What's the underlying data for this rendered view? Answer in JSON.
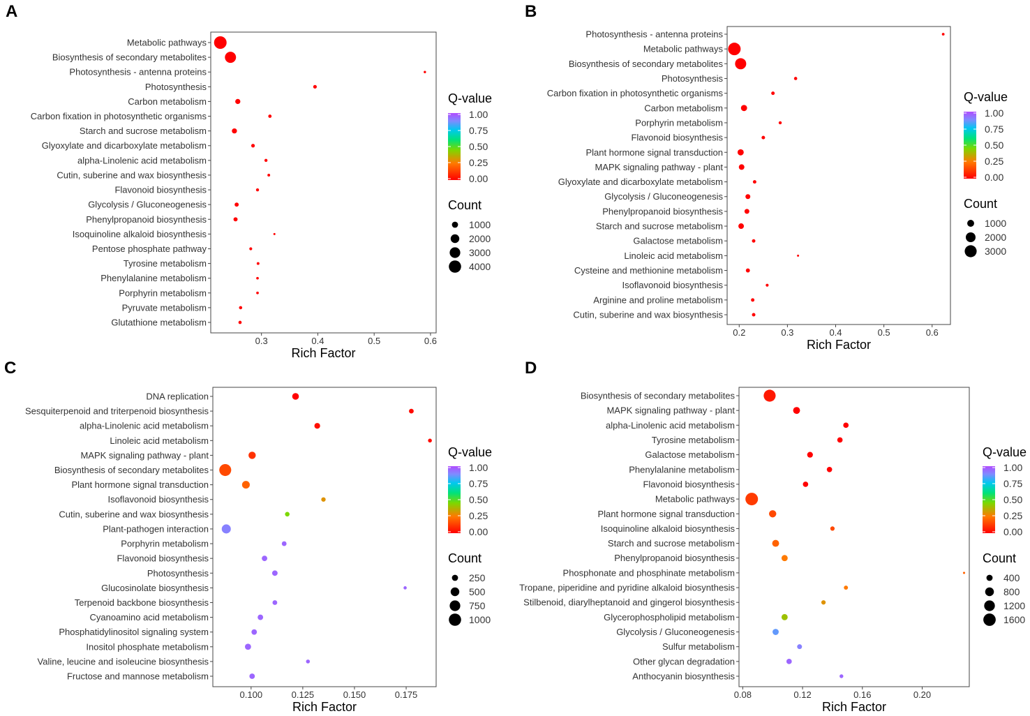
{
  "chart_data": [
    {
      "panel": "A",
      "type": "scatter",
      "xlabel": "Rich Factor",
      "xticks": [
        0.3,
        0.4,
        0.5,
        0.6
      ],
      "xlim": [
        0.21,
        0.61
      ],
      "pathways": [
        "Metabolic pathways",
        "Biosynthesis of secondary metabolites",
        "Photosynthesis - antenna proteins",
        "Photosynthesis",
        "Carbon metabolism",
        "Carbon fixation in photosynthetic organisms",
        "Starch and sucrose metabolism",
        "Glyoxylate and dicarboxylate metabolism",
        "alpha-Linolenic acid metabolism",
        "Cutin, suberine and wax biosynthesis",
        "Flavonoid biosynthesis",
        "Glycolysis / Gluconeogenesis",
        "Phenylpropanoid biosynthesis",
        "Isoquinoline alkaloid biosynthesis",
        "Pentose phosphate pathway",
        "Tyrosine metabolism",
        "Phenylalanine metabolism",
        "Porphyrin metabolism",
        "Pyruvate metabolism",
        "Glutathione metabolism"
      ],
      "rich_factor": [
        0.227,
        0.245,
        0.59,
        0.395,
        0.258,
        0.315,
        0.252,
        0.285,
        0.308,
        0.313,
        0.293,
        0.256,
        0.254,
        0.323,
        0.281,
        0.294,
        0.293,
        0.293,
        0.263,
        0.262
      ],
      "count": [
        4200,
        3300,
        150,
        350,
        700,
        300,
        700,
        350,
        250,
        200,
        250,
        450,
        450,
        80,
        230,
        200,
        180,
        180,
        280,
        280
      ],
      "q_value": [
        0.0,
        0.0,
        0.0,
        0.0,
        0.0,
        0.0,
        0.0,
        0.0,
        0.0,
        0.0,
        0.0,
        0.0,
        0.0,
        0.0,
        0.0,
        0.0,
        0.0,
        0.0,
        0.0,
        0.0
      ],
      "color_legend": {
        "title": "Q-value",
        "ticks": [
          "1.00",
          "0.75",
          "0.50",
          "0.25",
          "0.00"
        ]
      },
      "size_legend": {
        "title": "Count",
        "values": [
          1000,
          2000,
          3000,
          4000
        ],
        "labels": [
          "1000",
          "2000",
          "3000",
          "4000"
        ]
      },
      "count_max": 4200
    },
    {
      "panel": "B",
      "type": "scatter",
      "xlabel": "Rich Factor",
      "xticks": [
        0.2,
        0.3,
        0.4,
        0.5,
        0.6
      ],
      "xlim": [
        0.175,
        0.638
      ],
      "pathways": [
        "Photosynthesis - antenna proteins",
        "Metabolic pathways",
        "Biosynthesis of secondary metabolites",
        "Photosynthesis",
        "Carbon fixation in photosynthetic organisms",
        "Carbon metabolism",
        "Porphyrin metabolism",
        "Flavonoid biosynthesis",
        "Plant hormone signal transduction",
        "MAPK signaling pathway - plant",
        "Glyoxylate and dicarboxylate metabolism",
        "Glycolysis / Gluconeogenesis",
        "Phenylpropanoid biosynthesis",
        "Starch and sucrose metabolism",
        "Galactose metabolism",
        "Linoleic acid metabolism",
        "Cysteine and methionine metabolism",
        "Isoflavonoid biosynthesis",
        "Arginine and proline metabolism",
        "Cutin, suberine and wax biosynthesis"
      ],
      "rich_factor": [
        0.623,
        0.19,
        0.203,
        0.317,
        0.27,
        0.21,
        0.285,
        0.25,
        0.203,
        0.205,
        0.232,
        0.218,
        0.216,
        0.204,
        0.23,
        0.322,
        0.218,
        0.258,
        0.228,
        0.23
      ],
      "count": [
        150,
        3300,
        2600,
        220,
        250,
        800,
        200,
        260,
        800,
        650,
        250,
        500,
        500,
        650,
        250,
        60,
        350,
        180,
        250,
        250
      ],
      "q_value": [
        0.0,
        0.0,
        0.0,
        0.0,
        0.0,
        0.0,
        0.0,
        0.0,
        0.0,
        0.0,
        0.0,
        0.0,
        0.0,
        0.0,
        0.0,
        0.0,
        0.0,
        0.0,
        0.0,
        0.0
      ],
      "color_legend": {
        "title": "Q-value",
        "ticks": [
          "1.00",
          "0.75",
          "0.50",
          "0.25",
          "0.00"
        ]
      },
      "size_legend": {
        "title": "Count",
        "values": [
          1000,
          2000,
          3000
        ],
        "labels": [
          "1000",
          "2000",
          "3000"
        ]
      },
      "count_max": 3300
    },
    {
      "panel": "C",
      "type": "scatter",
      "xlabel": "Rich Factor",
      "xticks": [
        0.1,
        0.125,
        0.15,
        0.175
      ],
      "xtick_labels": [
        "0.100",
        "0.125",
        "0.150",
        "0.175"
      ],
      "xlim": [
        0.0815,
        0.1895
      ],
      "pathways": [
        "DNA replication",
        "Sesquiterpenoid and triterpenoid biosynthesis",
        "alpha-Linolenic acid metabolism",
        "Linoleic acid metabolism",
        "MAPK signaling pathway - plant",
        "Biosynthesis of secondary metabolites",
        "Plant hormone signal transduction",
        "Isoflavonoid biosynthesis",
        "Cutin, suberine and wax biosynthesis",
        "Plant-pathogen interaction",
        "Porphyrin metabolism",
        "Flavonoid biosynthesis",
        "Photosynthesis",
        "Glucosinolate biosynthesis",
        "Terpenoid backbone biosynthesis",
        "Cyanoamino acid metabolism",
        "Phosphatidylinositol signaling system",
        "Inositol phosphate metabolism",
        "Valine, leucine and isoleucine biosynthesis",
        "Fructose and mannose metabolism"
      ],
      "rich_factor": [
        0.1215,
        0.1775,
        0.132,
        0.1865,
        0.1005,
        0.0875,
        0.0975,
        0.135,
        0.1175,
        0.088,
        0.116,
        0.1065,
        0.1115,
        0.1745,
        0.1115,
        0.1045,
        0.1015,
        0.0985,
        0.1275,
        0.1005
      ],
      "count": [
        300,
        150,
        220,
        100,
        350,
        950,
        400,
        130,
        140,
        550,
        150,
        200,
        200,
        70,
        150,
        200,
        200,
        250,
        100,
        200
      ],
      "q_value": [
        0.0,
        0.02,
        0.03,
        0.02,
        0.1,
        0.15,
        0.2,
        0.3,
        0.45,
        0.9,
        0.95,
        0.95,
        0.95,
        0.95,
        0.95,
        0.95,
        0.95,
        0.95,
        0.95,
        0.95
      ],
      "color_legend": {
        "title": "Q-value",
        "ticks": [
          "1.00",
          "0.75",
          "0.50",
          "0.25",
          "0.00"
        ]
      },
      "size_legend": {
        "title": "Count",
        "values": [
          250,
          500,
          750,
          1000
        ],
        "labels": [
          "250",
          "500",
          "750",
          "1000"
        ]
      },
      "count_max": 1050
    },
    {
      "panel": "D",
      "type": "scatter",
      "xlabel": "Rich Factor",
      "xticks": [
        0.08,
        0.12,
        0.16,
        0.2
      ],
      "xtick_labels": [
        "0.08",
        "0.12",
        "0.16",
        "0.20"
      ],
      "xlim": [
        0.0775,
        0.2315
      ],
      "pathways": [
        "Biosynthesis of secondary metabolites",
        "MAPK signaling pathway - plant",
        "alpha-Linolenic acid metabolism",
        "Tyrosine metabolism",
        "Galactose metabolism",
        "Phenylalanine metabolism",
        "Flavonoid biosynthesis",
        "Metabolic pathways",
        "Plant hormone signal transduction",
        "Isoquinoline alkaloid biosynthesis",
        "Starch and sucrose metabolism",
        "Phenylpropanoid biosynthesis",
        "Phosphonate and phosphinate metabolism",
        "Tropane, piperidine and pyridine alkaloid biosynthesis",
        "Stilbenoid, diarylheptanoid and gingerol biosynthesis",
        "Glycerophospholipid metabolism",
        "Glycolysis / Gluconeogenesis",
        "Sulfur metabolism",
        "Other glycan degradation",
        "Anthocyanin biosynthesis"
      ],
      "rich_factor": [
        0.098,
        0.116,
        0.149,
        0.145,
        0.125,
        0.138,
        0.122,
        0.086,
        0.1,
        0.14,
        0.102,
        0.108,
        0.228,
        0.149,
        0.134,
        0.108,
        0.102,
        0.118,
        0.111,
        0.146
      ],
      "count": [
        1500,
        500,
        300,
        300,
        350,
        300,
        300,
        1650,
        550,
        200,
        500,
        400,
        50,
        180,
        200,
        400,
        400,
        250,
        300,
        150
      ],
      "q_value": [
        0.05,
        0.0,
        0.0,
        0.0,
        0.0,
        0.0,
        0.0,
        0.12,
        0.15,
        0.15,
        0.2,
        0.25,
        0.2,
        0.25,
        0.3,
        0.4,
        0.85,
        0.9,
        0.95,
        0.95
      ],
      "color_legend": {
        "title": "Q-value",
        "ticks": [
          "1.00",
          "0.75",
          "0.50",
          "0.25",
          "0.00"
        ]
      },
      "size_legend": {
        "title": "Count",
        "values": [
          400,
          800,
          1200,
          1600
        ],
        "labels": [
          "400",
          "800",
          "1200",
          "1600"
        ]
      },
      "count_max": 1650
    }
  ]
}
